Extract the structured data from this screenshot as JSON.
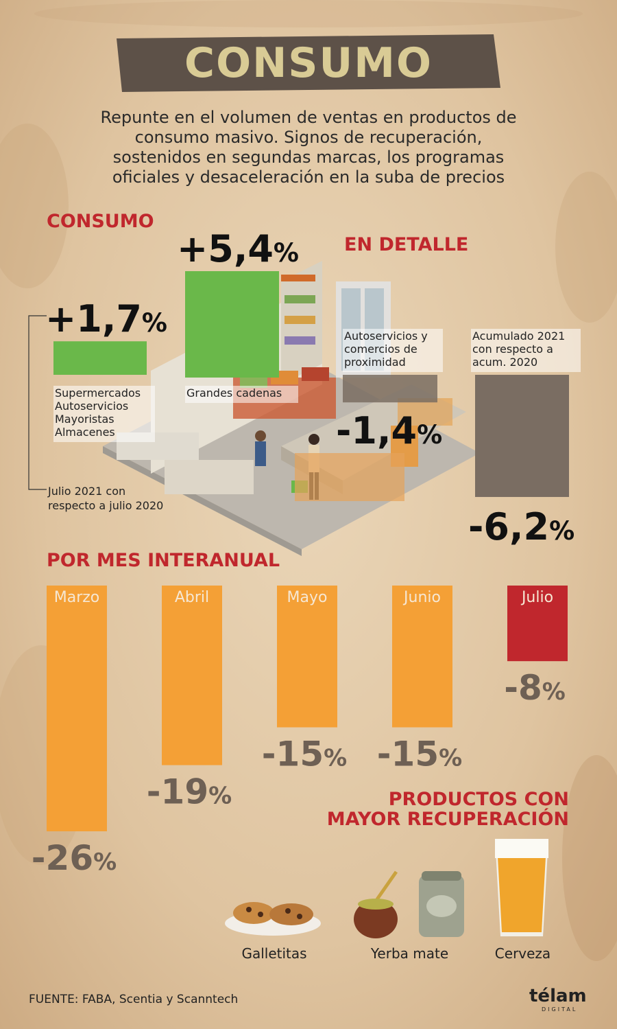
{
  "title": "CONSUMO",
  "subtitle_lines": [
    "Repunte en el volumen de ventas en productos de",
    "consumo masivo. Signos de recuperación,",
    "sostenidos en segundas marcas, los programas",
    "oficiales y desaceleración en la suba de precios"
  ],
  "section_consumo": "CONSUMO",
  "section_detalle": "EN DETALLE",
  "julio_note_lines": [
    "Julio 2021 con",
    "respecto a  julio 2020"
  ],
  "section_mensual": "POR MES INTERANUAL",
  "products_title_lines": [
    "PRODUCTOS CON",
    "MAYOR RECUPERACIÓN"
  ],
  "products": [
    "Galletitas",
    "Yerba mate",
    "Cerveza"
  ],
  "source": "FUENTE: FABA, Scentia y Scanntech",
  "logo": "télam",
  "logo_sub": "DIGITAL",
  "colors": {
    "green": "#6ab84a",
    "gray": "#7a6d62",
    "orange": "#f4a036",
    "red": "#c0272d",
    "banner": "#5d5148",
    "title_text": "#d9cb95"
  },
  "chart_data": [
    {
      "type": "bar",
      "title": "CONSUMO",
      "categories": [
        "Supermercados Autoservicios Mayoristas Almacenes",
        "Grandes cadenas",
        "Autoservicios y comercios de proximidad",
        "Acumulado 2021 con respecto a acum. 2020"
      ],
      "category_lines": [
        [
          "Supermercados",
          "Autoservicios",
          "Mayoristas",
          "Almacenes"
        ],
        [
          "Grandes cadenas"
        ],
        [
          "Autoservicios y",
          "comercios de",
          "proximidad"
        ],
        [
          "Acumulado 2021",
          "con respecto a",
          "acum. 2020"
        ]
      ],
      "values": [
        1.7,
        5.4,
        -1.4,
        -6.2
      ],
      "value_labels": [
        "+1,7",
        "+5,4",
        "-1,4",
        "-6,2"
      ],
      "unit": "%"
    },
    {
      "type": "bar",
      "title": "POR MES INTERANUAL",
      "categories": [
        "Marzo",
        "Abril",
        "Mayo",
        "Junio",
        "Julio"
      ],
      "values": [
        -26,
        -19,
        -15,
        -15,
        -8
      ],
      "value_labels": [
        "-26",
        "-19",
        "-15",
        "-15",
        "-8"
      ],
      "unit": "%"
    }
  ]
}
